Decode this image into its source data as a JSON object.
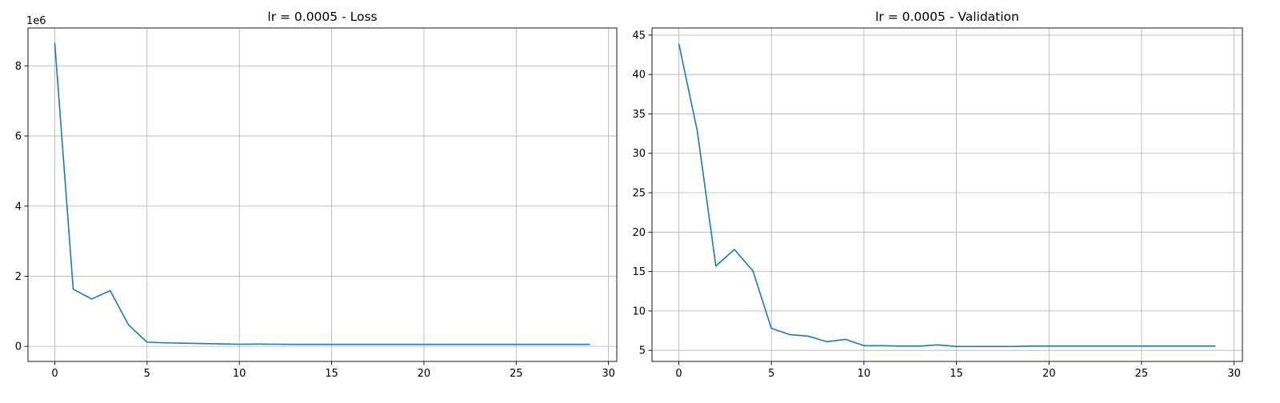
{
  "chart_data": [
    {
      "type": "line",
      "title": "lr = 0.0005 - Loss",
      "xlabel": "",
      "ylabel": "",
      "y_offset_label": "1e6",
      "xlim": [
        -1.45,
        30.45
      ],
      "ylim": [
        -0.43,
        9.08
      ],
      "y_scale": 1000000,
      "xticks": [
        0,
        5,
        10,
        15,
        20,
        25,
        30
      ],
      "yticks": [
        0,
        2,
        4,
        6,
        8
      ],
      "grid": true,
      "color": "#1f77b4",
      "series": [
        {
          "x": [
            0,
            1,
            2,
            3,
            4,
            5,
            6,
            7,
            8,
            9,
            10,
            11,
            12,
            13,
            14,
            15,
            16,
            17,
            18,
            19,
            20,
            21,
            22,
            23,
            24,
            25,
            26,
            27,
            28,
            29
          ],
          "values": [
            8.65,
            1.63,
            1.35,
            1.59,
            0.61,
            0.12,
            0.1,
            0.09,
            0.08,
            0.07,
            0.06,
            0.065,
            0.06,
            0.055,
            0.055,
            0.055,
            0.055,
            0.055,
            0.055,
            0.055,
            0.055,
            0.055,
            0.055,
            0.055,
            0.055,
            0.055,
            0.055,
            0.055,
            0.055,
            0.055
          ]
        }
      ]
    },
    {
      "type": "line",
      "title": "lr = 0.0005 - Validation",
      "xlabel": "",
      "ylabel": "",
      "xlim": [
        -1.45,
        30.45
      ],
      "ylim": [
        3.6,
        45.9
      ],
      "xticks": [
        0,
        5,
        10,
        15,
        20,
        25,
        30
      ],
      "yticks": [
        5,
        10,
        15,
        20,
        25,
        30,
        35,
        40,
        45
      ],
      "grid": true,
      "color": "#1f77b4",
      "series": [
        {
          "x": [
            0,
            1,
            2,
            3,
            4,
            5,
            6,
            7,
            8,
            9,
            10,
            11,
            12,
            13,
            14,
            15,
            16,
            17,
            18,
            19,
            20,
            21,
            22,
            23,
            24,
            25,
            26,
            27,
            28,
            29
          ],
          "values": [
            43.9,
            32.8,
            15.7,
            17.8,
            15.1,
            7.8,
            7.0,
            6.8,
            6.1,
            6.4,
            5.6,
            5.6,
            5.55,
            5.55,
            5.7,
            5.5,
            5.5,
            5.5,
            5.5,
            5.55,
            5.55,
            5.55,
            5.55,
            5.55,
            5.55,
            5.55,
            5.55,
            5.55,
            5.55,
            5.55
          ]
        }
      ]
    }
  ]
}
